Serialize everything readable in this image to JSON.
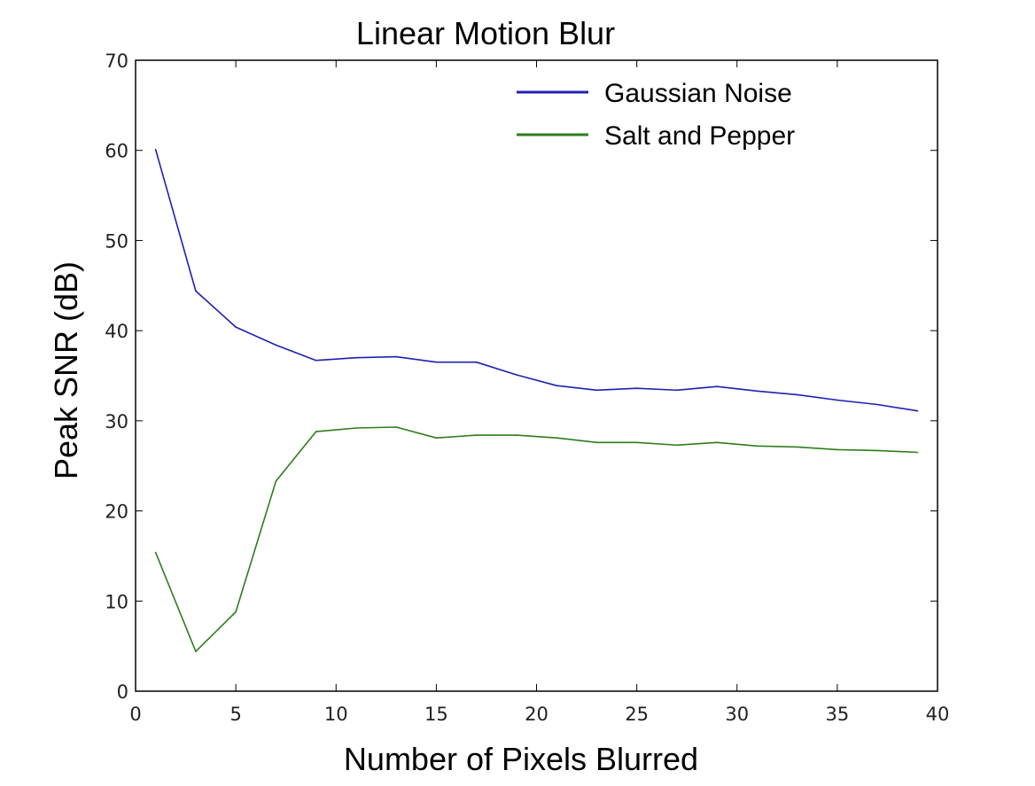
{
  "chart_data": {
    "type": "line",
    "title": "Linear Motion Blur",
    "xlabel": "Number of Pixels Blurred",
    "ylabel": "Peak SNR (dB)",
    "xlim": [
      0,
      40
    ],
    "ylim": [
      0,
      70
    ],
    "xticks": [
      "0",
      "5",
      "10",
      "15",
      "20",
      "25",
      "30",
      "35",
      "40"
    ],
    "yticks": [
      "0",
      "10",
      "20",
      "30",
      "40",
      "50",
      "60",
      "70"
    ],
    "grid": false,
    "legend_position": "top-right",
    "series": [
      {
        "name": "Gaussian Noise",
        "color": "#1f1fb4",
        "x": [
          1,
          3,
          5,
          7,
          9,
          11,
          13,
          15,
          17,
          19,
          21,
          23,
          25,
          27,
          29,
          31,
          33,
          35,
          37,
          39
        ],
        "y": [
          60.1,
          44.4,
          40.4,
          38.4,
          36.7,
          37.0,
          37.1,
          36.5,
          36.5,
          35.1,
          33.9,
          33.4,
          33.6,
          33.4,
          33.8,
          33.3,
          32.9,
          32.3,
          31.8,
          31.1
        ]
      },
      {
        "name": "Salt and Pepper",
        "color": "#2e7d1e",
        "x": [
          1,
          3,
          5,
          7,
          9,
          11,
          13,
          15,
          17,
          19,
          21,
          23,
          25,
          27,
          29,
          31,
          33,
          35,
          37,
          39
        ],
        "y": [
          15.4,
          4.4,
          8.8,
          23.3,
          28.8,
          29.2,
          29.3,
          28.1,
          28.4,
          28.4,
          28.1,
          27.6,
          27.6,
          27.3,
          27.6,
          27.2,
          27.1,
          26.8,
          26.7,
          26.5
        ]
      }
    ]
  }
}
